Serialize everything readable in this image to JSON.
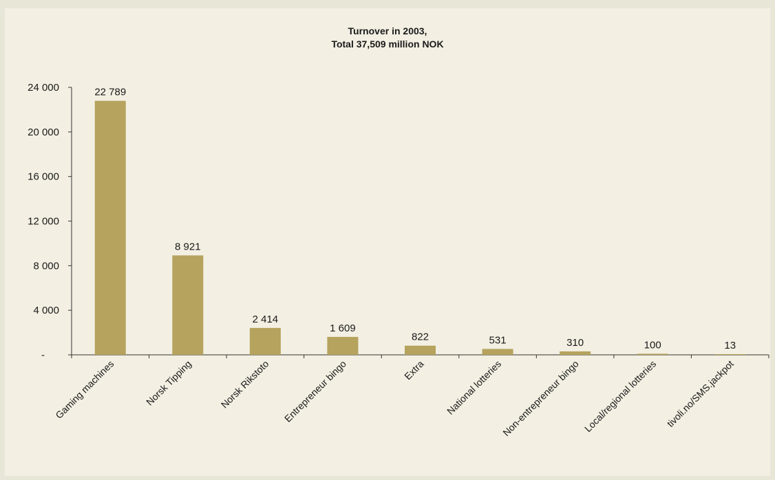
{
  "chart_data": {
    "type": "bar",
    "title": "Turnover in 2003,",
    "subtitle": "Total 37,509 million NOK",
    "categories": [
      "Gaming machines",
      "Norsk Tipping",
      "Norsk Rikstoto",
      "Entrepreneur bingo",
      "Extra",
      "National lotteries",
      "Non-entrepreneur bingo",
      "Local/regional lotteries",
      "tivoli.no/SMS.jackpot"
    ],
    "values": [
      22789,
      8921,
      2414,
      1609,
      822,
      531,
      310,
      100,
      13
    ],
    "value_labels": [
      "22 789",
      "8 921",
      "2 414",
      "1 609",
      "822",
      "531",
      "310",
      "100",
      "13"
    ],
    "ylim": [
      0,
      24000
    ],
    "yticks": [
      0,
      4000,
      8000,
      12000,
      16000,
      20000,
      24000
    ],
    "ytick_labels": [
      "-",
      "4 000",
      "8 000",
      "12 000",
      "16 000",
      "20 000",
      "24 000"
    ],
    "xlabel": "",
    "ylabel": "",
    "grid": false,
    "legend": "none",
    "colors": {
      "bar": "#b5a35e",
      "panel": "#f3efe2",
      "frame": "#e8e6d7",
      "axis": "#333333"
    }
  }
}
